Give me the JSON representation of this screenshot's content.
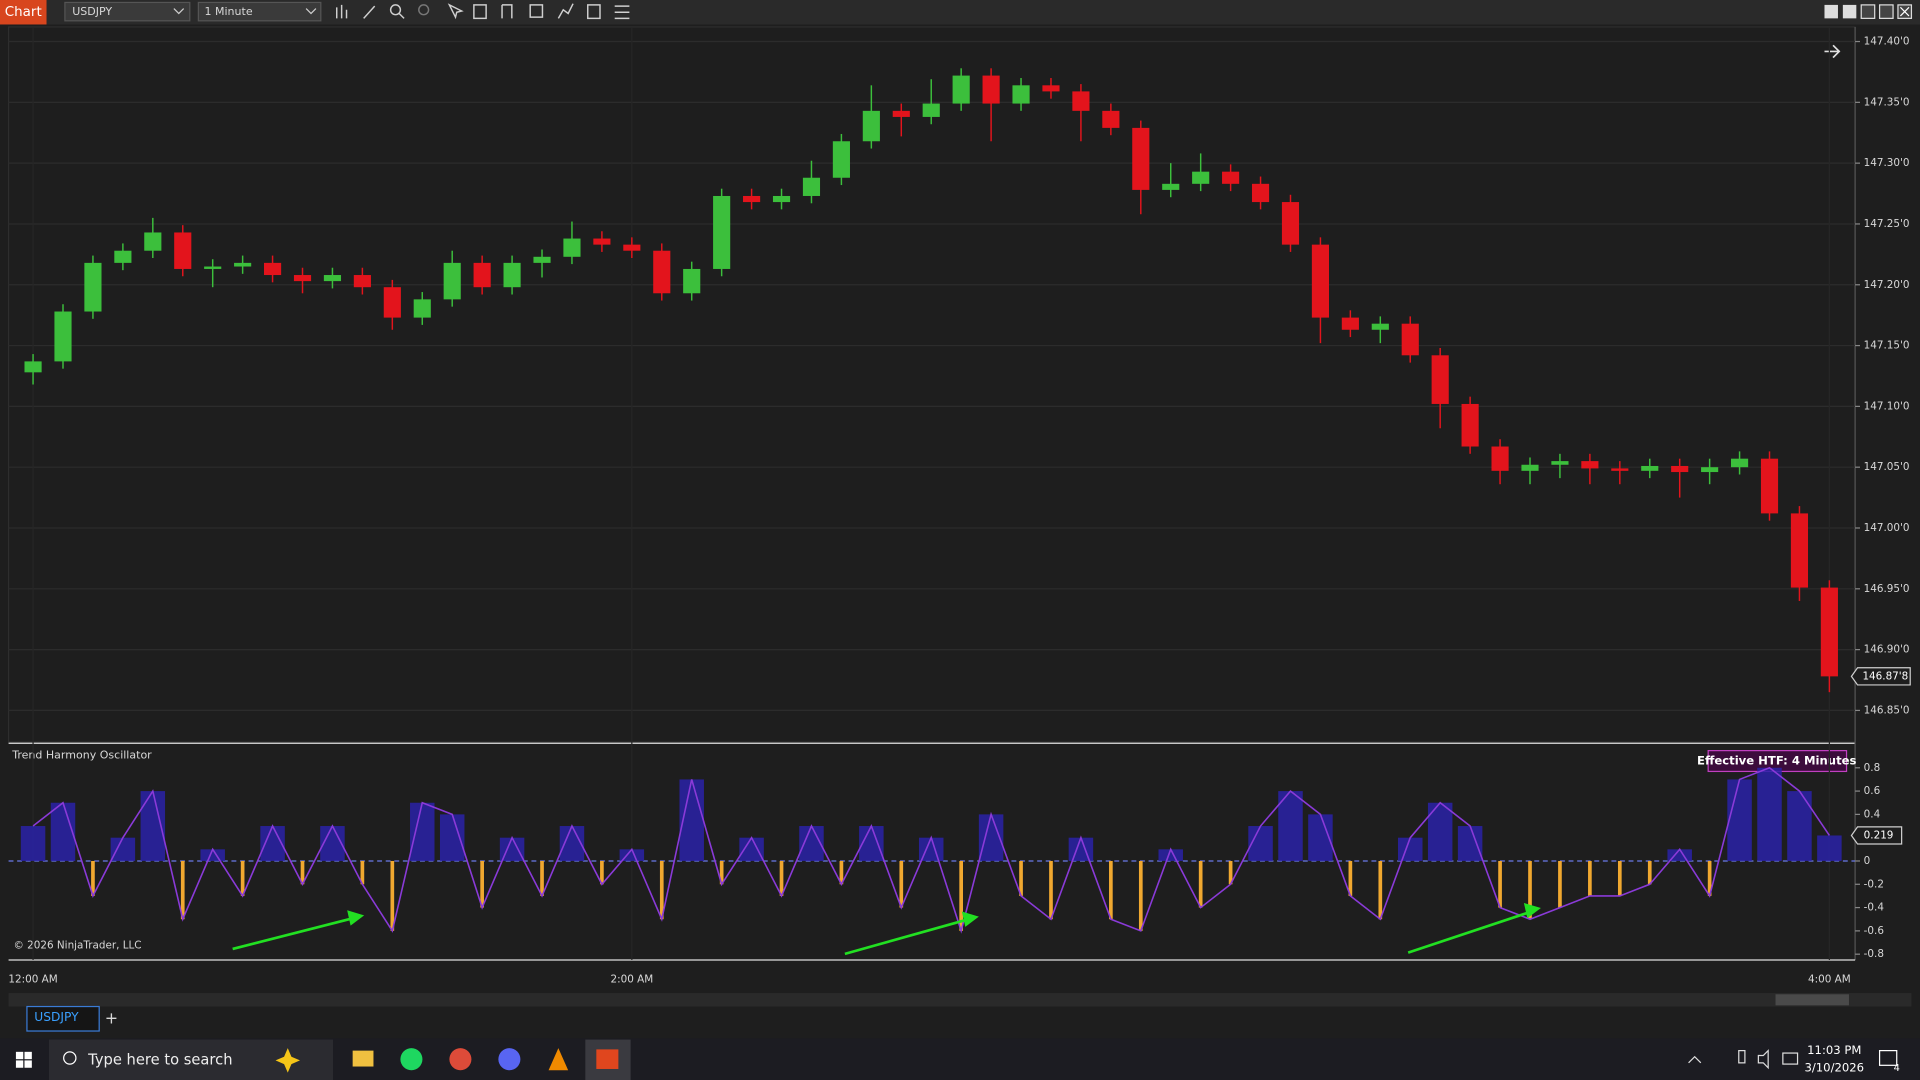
{
  "ui": {
    "app_tab": "Chart",
    "instrument": "USDJPY",
    "interval": "1 Minute",
    "bottom_tab": "USDJPY",
    "add_tab": "+",
    "copyright": "© 2026 NinjaTrader, LLC",
    "search_placeholder": "Type here to search",
    "clock_time": "11:03 PM",
    "clock_date": "3/10/2026",
    "notification_count": 4
  },
  "chart_data": [
    {
      "type": "candlestick",
      "categories": [
        "12:00 AM",
        null,
        null,
        null,
        null,
        null,
        null,
        null,
        null,
        null,
        null,
        null,
        null,
        null,
        null,
        null,
        null,
        null,
        null,
        null,
        "2:00 AM",
        null,
        null,
        null,
        null,
        null,
        null,
        null,
        null,
        null,
        null,
        null,
        null,
        null,
        null,
        null,
        null,
        null,
        null,
        null,
        null,
        null,
        null,
        null,
        null,
        null,
        null,
        null,
        null,
        null,
        null,
        null,
        null,
        null,
        null,
        null,
        null,
        null,
        null,
        null,
        "4:00 AM"
      ],
      "open": [
        147.128,
        147.137,
        147.178,
        147.218,
        147.228,
        147.243,
        147.213,
        147.215,
        147.218,
        147.208,
        147.203,
        147.208,
        147.198,
        147.173,
        147.188,
        147.218,
        147.198,
        147.218,
        147.223,
        147.238,
        147.233,
        147.228,
        147.193,
        147.213,
        147.273,
        147.268,
        147.273,
        147.288,
        147.318,
        147.343,
        147.338,
        147.349,
        147.372,
        147.349,
        147.364,
        147.359,
        147.343,
        147.329,
        147.278,
        147.283,
        147.293,
        147.283,
        147.268,
        147.233,
        147.173,
        147.163,
        147.168,
        147.142,
        147.102,
        147.067,
        147.047,
        147.052,
        147.055,
        147.049,
        147.047,
        147.051,
        147.046,
        147.05,
        147.057,
        147.012,
        146.951
      ],
      "high": [
        147.143,
        147.184,
        147.224,
        147.234,
        147.255,
        147.249,
        147.221,
        147.224,
        147.224,
        147.214,
        147.214,
        147.214,
        147.204,
        147.194,
        147.228,
        147.224,
        147.224,
        147.229,
        147.252,
        147.244,
        147.239,
        147.234,
        147.219,
        147.279,
        147.279,
        147.279,
        147.302,
        147.324,
        147.364,
        147.349,
        147.369,
        147.378,
        147.378,
        147.37,
        147.37,
        147.365,
        147.349,
        147.335,
        147.3,
        147.308,
        147.299,
        147.289,
        147.274,
        147.239,
        147.179,
        147.174,
        147.174,
        147.148,
        147.108,
        147.073,
        147.058,
        147.061,
        147.061,
        147.055,
        147.057,
        147.057,
        147.057,
        147.063,
        147.063,
        147.018,
        146.957
      ],
      "low": [
        147.118,
        147.131,
        147.172,
        147.212,
        147.222,
        147.207,
        147.198,
        147.209,
        147.202,
        147.193,
        147.197,
        147.192,
        147.163,
        147.167,
        147.182,
        147.192,
        147.192,
        147.206,
        147.217,
        147.227,
        147.222,
        147.187,
        147.187,
        147.207,
        147.262,
        147.262,
        147.267,
        147.282,
        147.312,
        147.322,
        147.332,
        147.343,
        147.318,
        147.343,
        147.353,
        147.318,
        147.323,
        147.258,
        147.272,
        147.277,
        147.277,
        147.262,
        147.227,
        147.152,
        147.157,
        147.152,
        147.136,
        147.082,
        147.061,
        147.036,
        147.036,
        147.041,
        147.036,
        147.036,
        147.041,
        147.025,
        147.036,
        147.044,
        147.006,
        146.94,
        146.865
      ],
      "close": [
        147.137,
        147.178,
        147.218,
        147.228,
        147.243,
        147.213,
        147.215,
        147.218,
        147.208,
        147.203,
        147.208,
        147.198,
        147.173,
        147.188,
        147.218,
        147.198,
        147.218,
        147.223,
        147.238,
        147.233,
        147.228,
        147.193,
        147.213,
        147.273,
        147.268,
        147.273,
        147.288,
        147.318,
        147.343,
        147.338,
        147.349,
        147.372,
        147.349,
        147.364,
        147.359,
        147.343,
        147.329,
        147.278,
        147.283,
        147.293,
        147.283,
        147.268,
        147.233,
        147.173,
        147.163,
        147.168,
        147.142,
        147.102,
        147.067,
        147.047,
        147.052,
        147.055,
        147.049,
        147.047,
        147.051,
        147.046,
        147.05,
        147.057,
        147.012,
        146.951,
        146.878
      ],
      "up_color": "#3cbf3c",
      "down_color": "#e3141c",
      "ylim": [
        146.824,
        147.412
      ],
      "yticks": [
        {
          "value": 146.85,
          "label": "146.85'0"
        },
        {
          "value": 146.9,
          "label": "146.90'0"
        },
        {
          "value": 146.95,
          "label": "146.95'0"
        },
        {
          "value": 147.0,
          "label": "147.00'0"
        },
        {
          "value": 147.05,
          "label": "147.05'0"
        },
        {
          "value": 147.1,
          "label": "147.10'0"
        },
        {
          "value": 147.15,
          "label": "147.15'0"
        },
        {
          "value": 147.2,
          "label": "147.20'0"
        },
        {
          "value": 147.25,
          "label": "147.25'0"
        },
        {
          "value": 147.3,
          "label": "147.30'0"
        },
        {
          "value": 147.35,
          "label": "147.35'0"
        },
        {
          "value": 147.4,
          "label": "147.40'0"
        }
      ],
      "grid": true,
      "current_value": 146.878,
      "current_value_label": "146.87'8"
    },
    {
      "type": "bar",
      "title": "Trend Harmony Oscillator",
      "annotation": "Effective HTF: 4 Minutes",
      "values": [
        0.3,
        0.5,
        -0.3,
        0.2,
        0.6,
        -0.5,
        0.1,
        -0.3,
        0.3,
        -0.2,
        0.3,
        -0.2,
        -0.6,
        0.5,
        0.4,
        -0.4,
        0.2,
        -0.3,
        0.3,
        -0.2,
        0.1,
        -0.5,
        0.7,
        -0.2,
        0.2,
        -0.3,
        0.3,
        -0.2,
        0.3,
        -0.4,
        0.2,
        -0.6,
        0.4,
        -0.3,
        -0.5,
        0.2,
        -0.5,
        -0.6,
        0.1,
        -0.4,
        -0.2,
        0.3,
        0.6,
        0.4,
        -0.3,
        -0.5,
        0.2,
        0.5,
        0.3,
        -0.4,
        -0.5,
        -0.4,
        -0.3,
        -0.3,
        -0.2,
        0.1,
        -0.3,
        0.7,
        0.8,
        0.6,
        0.219
      ],
      "positive_color": "#2a22a8",
      "negative_color": "#f0a830",
      "line_color": "#8a3ad8",
      "ylim": [
        -0.85,
        1.0
      ],
      "yticks": [
        -0.8,
        -0.6,
        -0.4,
        -0.2,
        0,
        0.2,
        0.4,
        0.6,
        0.8
      ],
      "current_value": 0.219
    }
  ]
}
